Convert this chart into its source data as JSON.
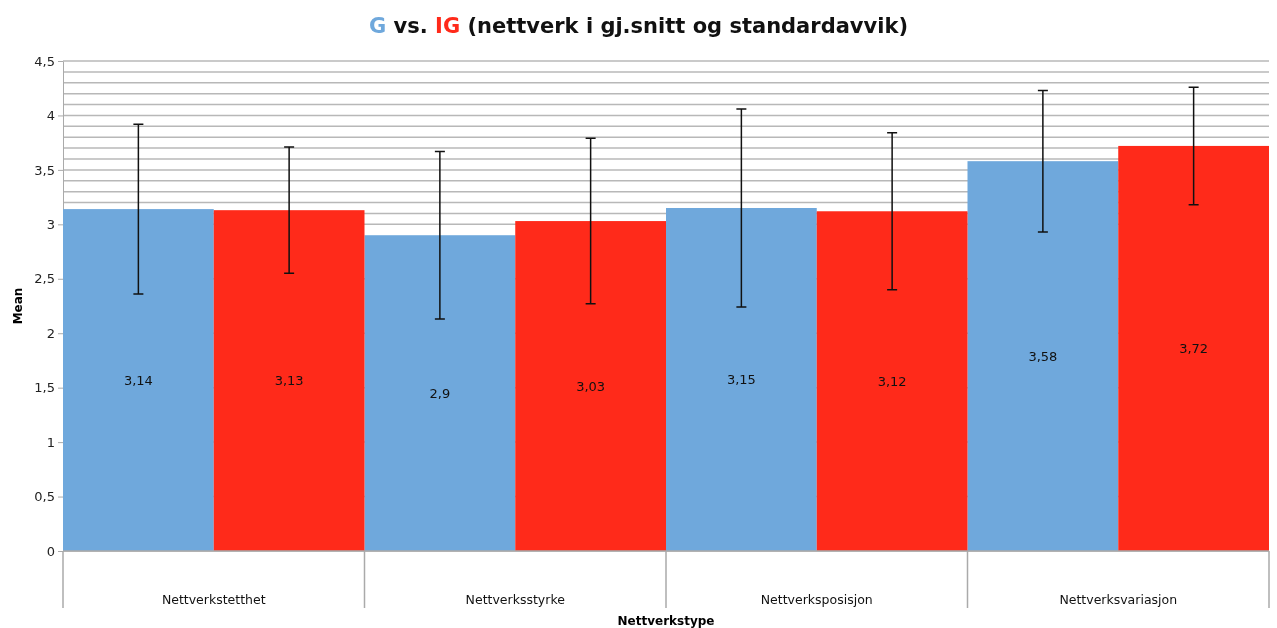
{
  "chart_data": {
    "type": "bar",
    "title": "vs. (nettverk i gj.snitt og standardavvik)",
    "xlabel": "Nettverkstype",
    "ylabel": "Mean",
    "categories": [
      "Nettverkstetthet",
      "Nettverksstyrke",
      "Nettverksposisjon",
      "Nettverksvariasjon"
    ],
    "series": [
      {
        "name": "G",
        "color": "#6fa8dc",
        "values": [
          3.14,
          2.9,
          3.15,
          3.58
        ],
        "value_labels": [
          "3,14",
          "2,9",
          "3,15",
          "3,58"
        ],
        "errors": [
          0.78,
          0.77,
          0.91,
          0.65
        ]
      },
      {
        "name": "IG",
        "color": "#ff2a1a",
        "values": [
          3.13,
          3.03,
          3.12,
          3.72
        ],
        "value_labels": [
          "3,13",
          "3,03",
          "3,12",
          "3,72"
        ],
        "errors": [
          0.58,
          0.76,
          0.72,
          0.54
        ]
      }
    ],
    "ylim": [
      0,
      4.5
    ],
    "yticks": [
      {
        "value": 0,
        "label": "0"
      },
      {
        "value": 0.5,
        "label": "0,5"
      },
      {
        "value": 1,
        "label": "1"
      },
      {
        "value": 1.5,
        "label": "1,5"
      },
      {
        "value": 2,
        "label": "2"
      },
      {
        "value": 2.5,
        "label": "2,5"
      },
      {
        "value": 3,
        "label": "3"
      },
      {
        "value": 3.1,
        "label": null
      },
      {
        "value": 3.2,
        "label": null
      },
      {
        "value": 3.3,
        "label": null
      },
      {
        "value": 3.4,
        "label": null
      },
      {
        "value": 3.5,
        "label": "3,5"
      },
      {
        "value": 3.6,
        "label": null
      },
      {
        "value": 3.7,
        "label": null
      },
      {
        "value": 3.8,
        "label": null
      },
      {
        "value": 3.9,
        "label": null
      },
      {
        "value": 4,
        "label": "4"
      },
      {
        "value": 4.1,
        "label": null
      },
      {
        "value": 4.2,
        "label": null
      },
      {
        "value": 4.3,
        "label": null
      },
      {
        "value": 4.4,
        "label": null
      },
      {
        "value": 4.5,
        "label": "4,5"
      }
    ],
    "grid": "y",
    "legend": false
  }
}
